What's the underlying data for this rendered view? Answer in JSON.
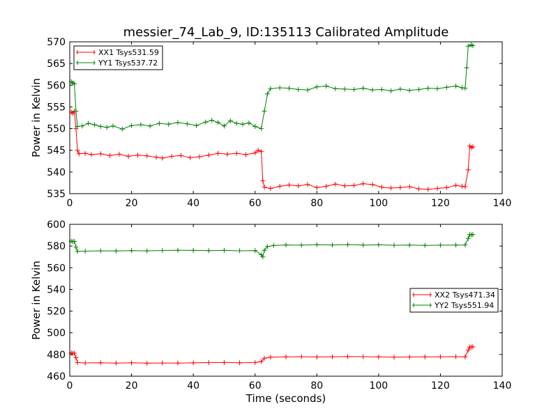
{
  "figure": {
    "title": "messier_74_Lab_9, ID:135113 Calibrated Amplitude"
  },
  "chart_data": [
    {
      "type": "line",
      "title": "messier_74_Lab_9, ID:135113 Calibrated Amplitude",
      "xlabel": "",
      "ylabel": "Power in Kelvin",
      "xlim": [
        0,
        140
      ],
      "ylim": [
        535,
        570
      ],
      "xticks": [
        0,
        20,
        40,
        60,
        80,
        100,
        120,
        140
      ],
      "yticks": [
        535,
        540,
        545,
        550,
        555,
        560,
        565,
        570
      ],
      "grid": false,
      "legend_position": "top-left",
      "series": [
        {
          "name": "XX1 Tsys531.59",
          "color": "#ff0000",
          "marker": "plus",
          "points": [
            [
              0.5,
              553.8
            ],
            [
              1.0,
              553.5
            ],
            [
              1.5,
              554.0
            ],
            [
              2.0,
              550.0
            ],
            [
              2.5,
              545.0
            ],
            [
              3,
              544.2
            ],
            [
              5,
              544.3
            ],
            [
              7,
              544.0
            ],
            [
              10,
              544.2
            ],
            [
              13,
              543.8
            ],
            [
              16,
              544.1
            ],
            [
              19,
              543.6
            ],
            [
              22,
              543.9
            ],
            [
              25,
              543.7
            ],
            [
              28,
              543.4
            ],
            [
              30,
              543.2
            ],
            [
              33,
              543.6
            ],
            [
              36,
              543.8
            ],
            [
              39,
              543.3
            ],
            [
              42,
              543.5
            ],
            [
              45,
              543.9
            ],
            [
              48,
              544.3
            ],
            [
              51,
              544.1
            ],
            [
              54,
              544.3
            ],
            [
              57,
              544.0
            ],
            [
              60,
              544.4
            ],
            [
              61,
              545.0
            ],
            [
              62,
              544.7
            ],
            [
              62.5,
              538.0
            ],
            [
              63,
              536.5
            ],
            [
              65,
              536.2
            ],
            [
              68,
              536.7
            ],
            [
              71,
              537.0
            ],
            [
              74,
              536.8
            ],
            [
              77,
              537.1
            ],
            [
              80,
              536.4
            ],
            [
              83,
              536.7
            ],
            [
              86,
              537.2
            ],
            [
              89,
              536.8
            ],
            [
              92,
              536.9
            ],
            [
              95,
              537.3
            ],
            [
              98,
              537.1
            ],
            [
              101,
              536.5
            ],
            [
              104,
              536.3
            ],
            [
              107,
              536.4
            ],
            [
              110,
              536.6
            ],
            [
              113,
              536.1
            ],
            [
              116,
              536.0
            ],
            [
              119,
              536.2
            ],
            [
              122,
              536.4
            ],
            [
              125,
              536.9
            ],
            [
              127,
              536.7
            ],
            [
              128,
              536.6
            ],
            [
              129,
              540.5
            ],
            [
              129.5,
              546.0
            ],
            [
              130,
              545.6
            ],
            [
              130.5,
              545.8
            ]
          ]
        },
        {
          "name": "YY1 Tsys537.72",
          "color": "#008000",
          "marker": "plus",
          "points": [
            [
              0.5,
              560.8
            ],
            [
              1.0,
              560.5
            ],
            [
              1.5,
              560.3
            ],
            [
              2.0,
              554.0
            ],
            [
              2.5,
              550.5
            ],
            [
              4,
              550.6
            ],
            [
              6,
              551.2
            ],
            [
              8,
              550.9
            ],
            [
              10,
              550.5
            ],
            [
              12,
              550.3
            ],
            [
              14,
              550.6
            ],
            [
              17,
              549.9
            ],
            [
              20,
              550.7
            ],
            [
              23,
              550.9
            ],
            [
              26,
              550.6
            ],
            [
              29,
              551.2
            ],
            [
              32,
              551.0
            ],
            [
              35,
              551.4
            ],
            [
              38,
              551.1
            ],
            [
              41,
              550.7
            ],
            [
              44,
              551.5
            ],
            [
              46,
              551.9
            ],
            [
              48,
              551.4
            ],
            [
              50,
              550.6
            ],
            [
              52,
              551.8
            ],
            [
              54,
              551.2
            ],
            [
              56,
              551.0
            ],
            [
              58,
              551.3
            ],
            [
              60,
              550.5
            ],
            [
              62,
              550.0
            ],
            [
              63,
              554.0
            ],
            [
              64,
              558.0
            ],
            [
              65,
              559.2
            ],
            [
              68,
              559.4
            ],
            [
              71,
              559.3
            ],
            [
              74,
              559.0
            ],
            [
              77,
              558.9
            ],
            [
              80,
              559.6
            ],
            [
              83,
              559.8
            ],
            [
              86,
              559.2
            ],
            [
              89,
              559.1
            ],
            [
              92,
              559.0
            ],
            [
              95,
              559.3
            ],
            [
              98,
              558.9
            ],
            [
              101,
              559.0
            ],
            [
              104,
              558.7
            ],
            [
              107,
              559.1
            ],
            [
              110,
              558.8
            ],
            [
              113,
              559.0
            ],
            [
              116,
              559.3
            ],
            [
              119,
              559.2
            ],
            [
              122,
              559.5
            ],
            [
              125,
              559.8
            ],
            [
              127,
              559.4
            ],
            [
              128,
              559.3
            ],
            [
              128.5,
              564.0
            ],
            [
              129,
              569.0
            ],
            [
              130,
              569.3
            ],
            [
              130.5,
              569.1
            ]
          ]
        }
      ]
    },
    {
      "type": "line",
      "title": "",
      "xlabel": "Time (seconds)",
      "ylabel": "Power in Kelvin",
      "xlim": [
        0,
        140
      ],
      "ylim": [
        460,
        600
      ],
      "xticks": [
        0,
        20,
        40,
        60,
        80,
        100,
        120,
        140
      ],
      "yticks": [
        460,
        480,
        500,
        520,
        540,
        560,
        580,
        600
      ],
      "grid": false,
      "legend_position": "center-right",
      "series": [
        {
          "name": "XX2 Tsys471.34",
          "color": "#ff0000",
          "marker": "plus",
          "points": [
            [
              0.5,
              481.5
            ],
            [
              1.0,
              481.0
            ],
            [
              1.5,
              481.3
            ],
            [
              2.0,
              477.0
            ],
            [
              2.5,
              472.5
            ],
            [
              5,
              472.2
            ],
            [
              10,
              472.4
            ],
            [
              15,
              472.1
            ],
            [
              20,
              472.3
            ],
            [
              25,
              472.0
            ],
            [
              30,
              472.2
            ],
            [
              35,
              472.1
            ],
            [
              40,
              472.3
            ],
            [
              45,
              472.5
            ],
            [
              50,
              472.6
            ],
            [
              55,
              472.4
            ],
            [
              60,
              472.6
            ],
            [
              62,
              473.5
            ],
            [
              63,
              476.5
            ],
            [
              65,
              477.6
            ],
            [
              70,
              477.8
            ],
            [
              75,
              478.0
            ],
            [
              80,
              477.7
            ],
            [
              85,
              477.9
            ],
            [
              90,
              478.1
            ],
            [
              95,
              478.0
            ],
            [
              100,
              477.8
            ],
            [
              105,
              477.6
            ],
            [
              110,
              477.7
            ],
            [
              115,
              477.8
            ],
            [
              120,
              477.9
            ],
            [
              125,
              478.0
            ],
            [
              128,
              477.8
            ],
            [
              129,
              484.0
            ],
            [
              129.5,
              487.0
            ],
            [
              130,
              486.8
            ],
            [
              130.5,
              487.1
            ]
          ]
        },
        {
          "name": "YY2 Tsys551.94",
          "color": "#008000",
          "marker": "plus",
          "points": [
            [
              0.5,
              584.5
            ],
            [
              1.0,
              584.0
            ],
            [
              1.5,
              584.3
            ],
            [
              2.0,
              579.0
            ],
            [
              2.5,
              575.0
            ],
            [
              5,
              575.3
            ],
            [
              10,
              575.6
            ],
            [
              15,
              575.4
            ],
            [
              20,
              575.8
            ],
            [
              25,
              575.5
            ],
            [
              30,
              575.9
            ],
            [
              35,
              576.1
            ],
            [
              40,
              576.0
            ],
            [
              45,
              575.7
            ],
            [
              50,
              576.0
            ],
            [
              55,
              575.6
            ],
            [
              60,
              575.8
            ],
            [
              62,
              572.0
            ],
            [
              62.5,
              570.0
            ],
            [
              63,
              576.0
            ],
            [
              64,
              579.5
            ],
            [
              66,
              580.5
            ],
            [
              70,
              581.0
            ],
            [
              75,
              580.8
            ],
            [
              80,
              581.2
            ],
            [
              85,
              581.0
            ],
            [
              90,
              581.3
            ],
            [
              95,
              580.9
            ],
            [
              100,
              581.1
            ],
            [
              105,
              580.7
            ],
            [
              110,
              580.9
            ],
            [
              115,
              580.6
            ],
            [
              120,
              580.8
            ],
            [
              125,
              580.9
            ],
            [
              128,
              581.0
            ],
            [
              129,
              587.0
            ],
            [
              129.5,
              590.5
            ],
            [
              130,
              590.3
            ],
            [
              130.5,
              590.6
            ]
          ]
        }
      ]
    }
  ]
}
